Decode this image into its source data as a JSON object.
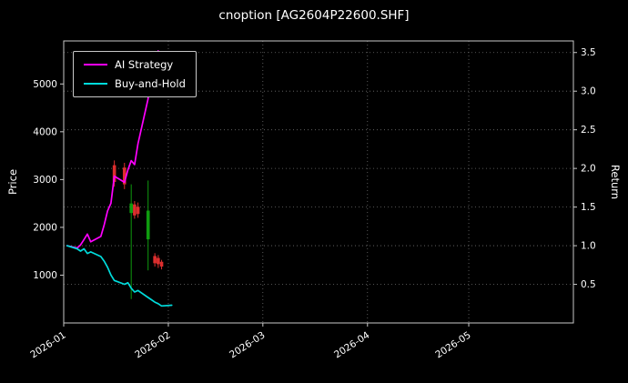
{
  "chart_data": {
    "type": "line",
    "title": "cnoption [AG2604P22600.SHF]",
    "ylabel_left": "Price",
    "ylabel_right": "Return",
    "x_domain": [
      "2026-01-01",
      "2026-06-01"
    ],
    "price_range": [
      0,
      5900
    ],
    "return_range": [
      0,
      3.65
    ],
    "left_yticks": [
      1000,
      2000,
      3000,
      4000,
      5000
    ],
    "right_yticks": [
      0.5,
      1.0,
      1.5,
      2.0,
      2.5,
      3.0,
      3.5
    ],
    "x_ticks": [
      {
        "date": "2026-01-01",
        "label": "2026-01"
      },
      {
        "date": "2026-02-01",
        "label": "2026-02"
      },
      {
        "date": "2026-03-01",
        "label": "2026-03"
      },
      {
        "date": "2026-04-01",
        "label": "2026-04"
      },
      {
        "date": "2026-05-01",
        "label": "2026-05"
      }
    ],
    "grid_color": "#6e6e6e",
    "spine_color": "#c8c8c8",
    "text_color": "#ffffff",
    "series": [
      {
        "name": "AI Strategy",
        "color": "#ff00ff",
        "axis": "return",
        "dates": [
          "2026-01-02",
          "2026-01-05",
          "2026-01-06",
          "2026-01-07",
          "2026-01-08",
          "2026-01-09",
          "2026-01-12",
          "2026-01-13",
          "2026-01-14",
          "2026-01-15",
          "2026-01-16",
          "2026-01-19",
          "2026-01-20",
          "2026-01-21",
          "2026-01-22",
          "2026-01-23",
          "2026-01-26",
          "2026-01-27",
          "2026-01-28",
          "2026-01-29",
          "2026-01-30",
          "2026-02-02"
        ],
        "values": [
          1.0,
          0.97,
          1.01,
          1.08,
          1.15,
          1.05,
          1.12,
          1.27,
          1.45,
          1.55,
          1.9,
          1.82,
          1.98,
          2.1,
          2.05,
          2.32,
          2.9,
          3.38,
          3.28,
          3.52,
          3.15,
          3.35
        ]
      },
      {
        "name": "Buy-and-Hold",
        "color": "#00dcdc",
        "axis": "return",
        "dates": [
          "2026-01-02",
          "2026-01-05",
          "2026-01-06",
          "2026-01-07",
          "2026-01-08",
          "2026-01-09",
          "2026-01-12",
          "2026-01-13",
          "2026-01-14",
          "2026-01-15",
          "2026-01-16",
          "2026-01-19",
          "2026-01-20",
          "2026-01-21",
          "2026-01-22",
          "2026-01-23",
          "2026-01-26",
          "2026-01-27",
          "2026-01-28",
          "2026-01-29",
          "2026-01-30",
          "2026-02-02"
        ],
        "values": [
          1.0,
          0.96,
          0.93,
          0.96,
          0.9,
          0.92,
          0.86,
          0.8,
          0.72,
          0.62,
          0.55,
          0.5,
          0.52,
          0.45,
          0.4,
          0.42,
          0.33,
          0.3,
          0.27,
          0.25,
          0.22,
          0.23
        ]
      }
    ],
    "candles": {
      "up_color": "#dd2e2e",
      "down_color": "#0f9b0f",
      "items": [
        {
          "date": "2026-01-16",
          "open": 2950,
          "high": 3400,
          "low": 2850,
          "close": 3300
        },
        {
          "date": "2026-01-19",
          "open": 2900,
          "high": 3350,
          "low": 2800,
          "close": 3250
        },
        {
          "date": "2026-01-21",
          "open": 2500,
          "high": 2900,
          "low": 500,
          "close": 2300
        },
        {
          "date": "2026-01-22",
          "open": 2250,
          "high": 2550,
          "low": 2180,
          "close": 2480
        },
        {
          "date": "2026-01-23",
          "open": 2280,
          "high": 2520,
          "low": 2200,
          "close": 2430
        },
        {
          "date": "2026-01-26",
          "open": 2350,
          "high": 2980,
          "low": 1100,
          "close": 1750
        },
        {
          "date": "2026-01-28",
          "open": 1250,
          "high": 1460,
          "low": 1180,
          "close": 1400
        },
        {
          "date": "2026-01-29",
          "open": 1230,
          "high": 1420,
          "low": 1150,
          "close": 1360
        },
        {
          "date": "2026-01-30",
          "open": 1180,
          "high": 1320,
          "low": 1120,
          "close": 1280
        }
      ]
    },
    "legend_position": "upper-left",
    "grid": "dotted"
  }
}
